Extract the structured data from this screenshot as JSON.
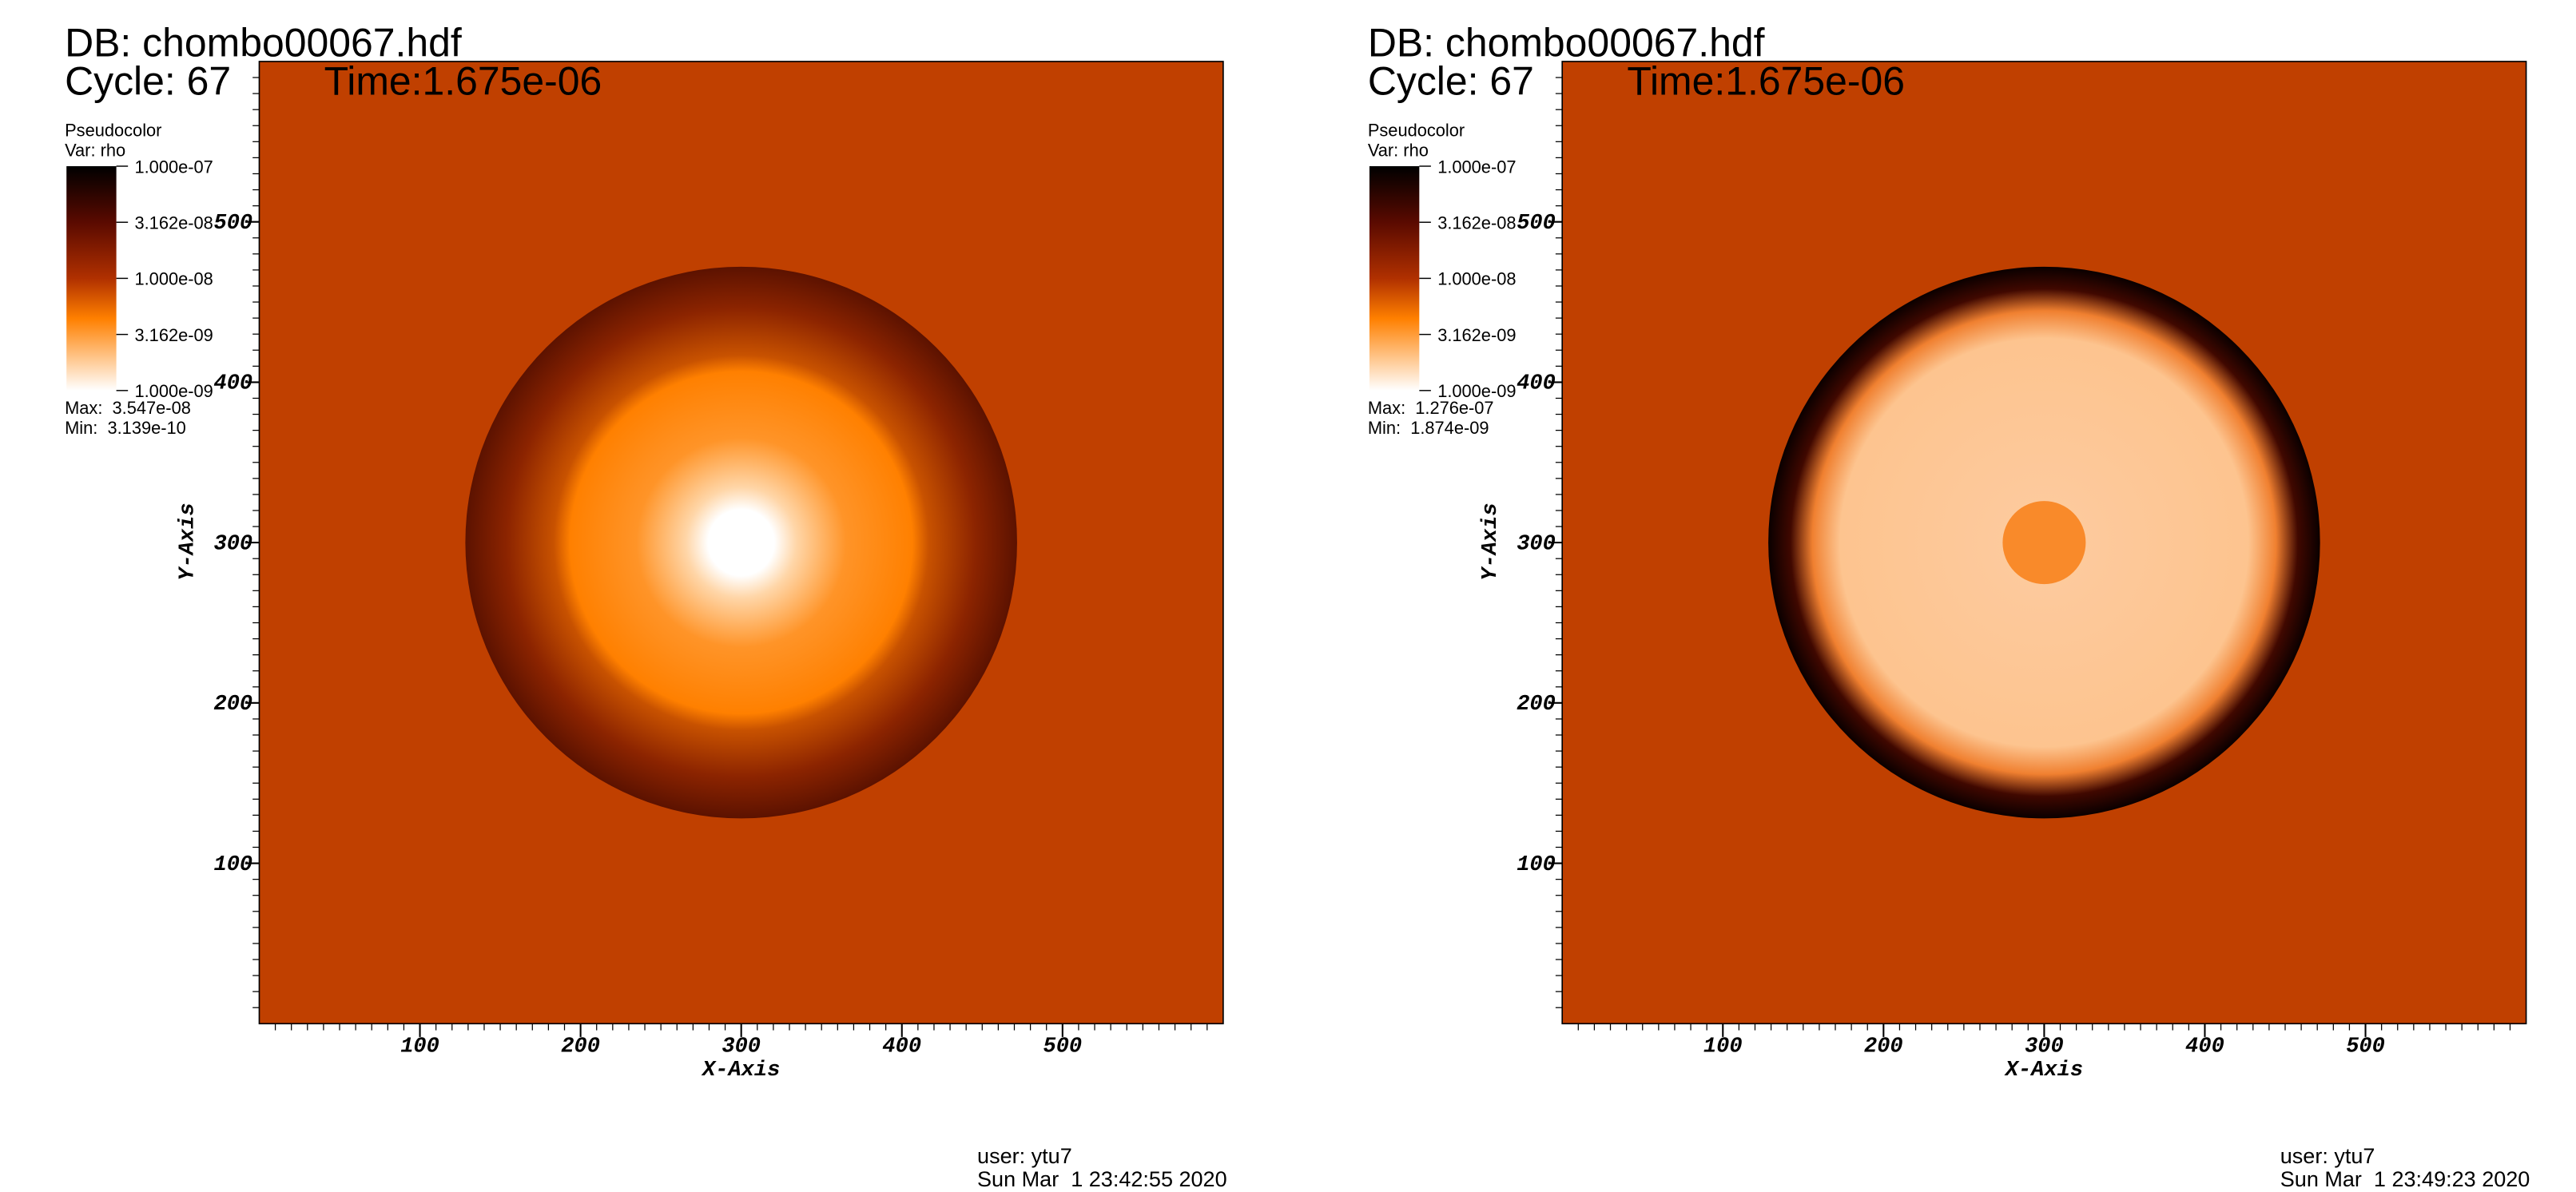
{
  "panels": [
    {
      "db": "DB: chombo00067.hdf",
      "cycle": "Cycle: 67",
      "time": "Time:1.675e-06",
      "plot_type": "Pseudocolor",
      "var": "Var: rho",
      "legend_labels": [
        "1.000e-07",
        "3.162e-08",
        "1.000e-08",
        "3.162e-09",
        "1.000e-09"
      ],
      "max": "Max:  3.547e-08",
      "min": "Min:  3.139e-10",
      "x_axis_label": "X-Axis",
      "y_axis_label": "Y-Axis",
      "xlim": [
        0,
        600
      ],
      "ylim": [
        0,
        600
      ],
      "xticks": [
        100,
        200,
        300,
        400,
        500
      ],
      "yticks": [
        100,
        200,
        300,
        400,
        500
      ],
      "user": "user: ytu7",
      "date": "Sun Mar  1 23:42:55 2020"
    },
    {
      "db": "DB: chombo00067.hdf",
      "cycle": "Cycle: 67",
      "time": "Time:1.675e-06",
      "plot_type": "Pseudocolor",
      "var": "Var: rho",
      "legend_labels": [
        "1.000e-07",
        "3.162e-08",
        "1.000e-08",
        "3.162e-09",
        "1.000e-09"
      ],
      "max": "Max:  1.276e-07",
      "min": "Min:  1.874e-09",
      "x_axis_label": "X-Axis",
      "y_axis_label": "Y-Axis",
      "xlim": [
        0,
        600
      ],
      "ylim": [
        0,
        600
      ],
      "xticks": [
        100,
        200,
        300,
        400,
        500
      ],
      "yticks": [
        100,
        200,
        300,
        400,
        500
      ],
      "user": "user: ytu7",
      "date": "Sun Mar  1 23:49:23 2020"
    }
  ]
}
